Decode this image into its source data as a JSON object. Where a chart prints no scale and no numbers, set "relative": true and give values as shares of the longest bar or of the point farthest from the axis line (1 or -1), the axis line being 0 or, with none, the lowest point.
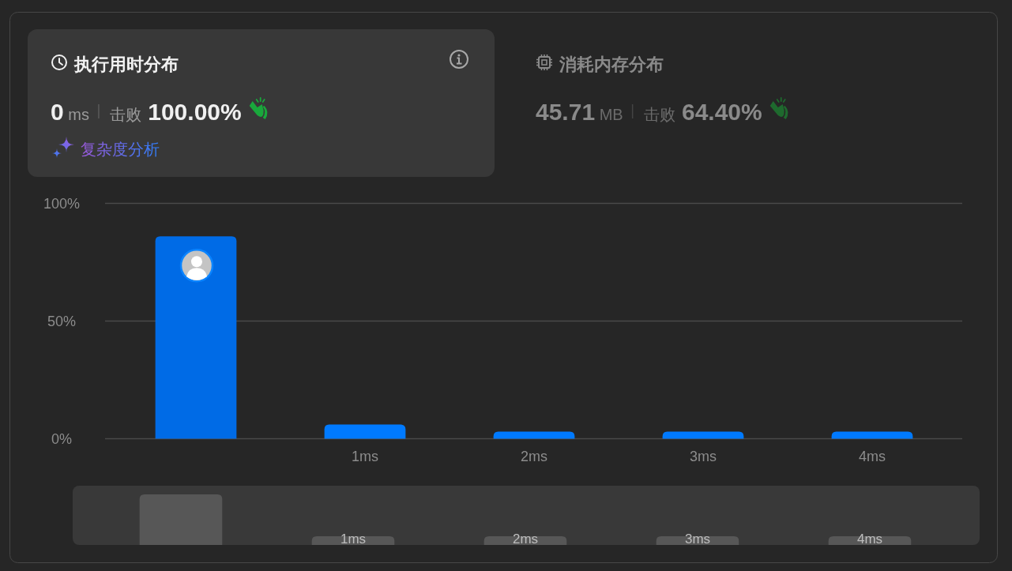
{
  "chart_data": [
    {
      "type": "bar",
      "title": "执行用时分布",
      "annotations": [
        "0 ms",
        "击败 100.00%",
        "复杂度分析"
      ],
      "categories": [
        null,
        "1ms",
        "2ms",
        "3ms",
        "4ms"
      ],
      "values": [
        86,
        6,
        3,
        3,
        3
      ],
      "colors": [
        "#006be6",
        "#007aff",
        "#007aff",
        "#007aff",
        "#007aff"
      ],
      "ylim": [
        0,
        100
      ],
      "yticks": [
        {
          "value": 0,
          "label": "0%"
        },
        {
          "value": 50,
          "label": "50%"
        },
        {
          "value": 100,
          "label": "100%"
        }
      ],
      "grid": "y"
    },
    {
      "type": "other",
      "title": "消耗内存分布",
      "annotations": [
        "45.71 MB",
        "击败 64.40%"
      ]
    },
    {
      "type": "bar",
      "relative": true,
      "categories": [
        null,
        "1ms",
        "2ms",
        "3ms",
        "4ms"
      ],
      "values": [
        1,
        0.17,
        0.17,
        0.17,
        0.17
      ],
      "color": "#575757"
    }
  ]
}
